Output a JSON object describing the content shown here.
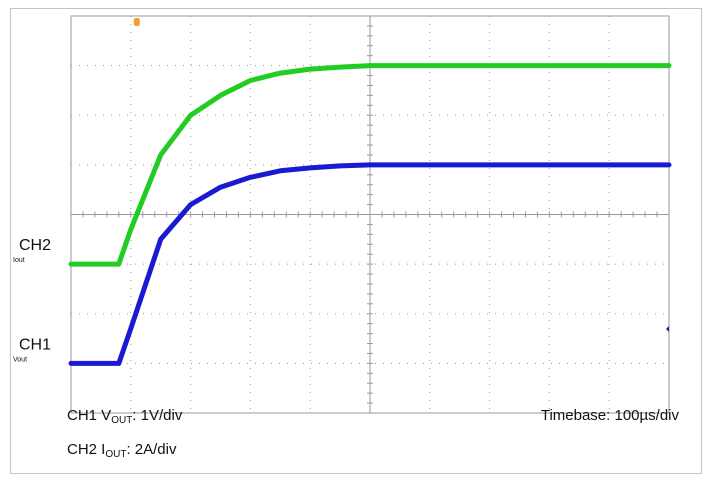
{
  "chart_data": {
    "type": "line",
    "title": "",
    "x": [
      0,
      20,
      40,
      60,
      80,
      100,
      150,
      200,
      250,
      300,
      350,
      400,
      450,
      500,
      550,
      600,
      650,
      700,
      750,
      800,
      850,
      900,
      950,
      1000
    ],
    "x_unit": "µs",
    "y_unit": "div",
    "xlim": [
      0,
      1000
    ],
    "ylim": [
      -4,
      4
    ],
    "grid": true,
    "grid_divisions": {
      "x": 10,
      "y": 8
    },
    "series": [
      {
        "name": "CH2",
        "marker_label": "Iout",
        "color": "#22cc22",
        "values": [
          -1.0,
          -1.0,
          -1.0,
          -1.0,
          -1.0,
          -0.3,
          1.2,
          2.0,
          2.4,
          2.7,
          2.85,
          2.93,
          2.97,
          3.0,
          3.0,
          3.0,
          3.0,
          3.0,
          3.0,
          3.0,
          3.0,
          3.0,
          3.0,
          3.0
        ]
      },
      {
        "name": "CH1",
        "marker_label": "Vout",
        "color": "#1a1ad0",
        "values": [
          -3.0,
          -3.0,
          -3.0,
          -3.0,
          -3.0,
          -2.3,
          -0.5,
          0.2,
          0.55,
          0.75,
          0.88,
          0.94,
          0.98,
          1.0,
          1.0,
          1.0,
          1.0,
          1.0,
          1.0,
          1.0,
          1.0,
          1.0,
          1.0,
          1.0
        ]
      }
    ],
    "annotations": {
      "ch1_scale": "CH1 V",
      "ch1_scale_sub": "OUT",
      "ch1_scale_value": ": 1V/div",
      "ch2_scale": "CH2 I",
      "ch2_scale_sub": "OUT",
      "ch2_scale_value": ": 2A/div",
      "timebase": "Timebase: 100µs/div",
      "trigger_marker": "T"
    }
  },
  "colors": {
    "grid": "#9a9a9a",
    "trigger": "#f0a030",
    "frame": "#b9c7d3"
  }
}
